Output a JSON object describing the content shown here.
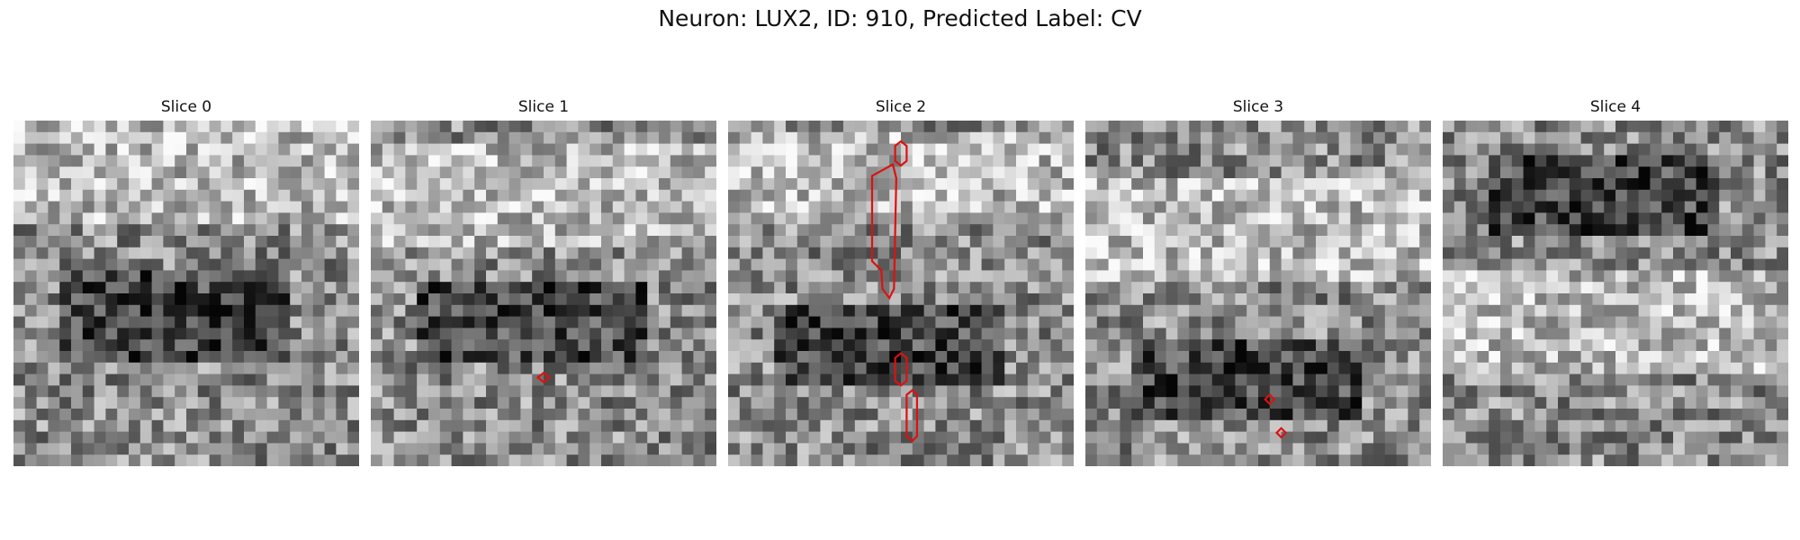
{
  "figure": {
    "title": "Neuron: LUX2, ID: 910, Predicted Label: CV"
  },
  "contour_color": "#dd1111",
  "slices": [
    {
      "title": "Slice 0",
      "seed": 11,
      "bright_band": [
        0.12,
        0.25
      ],
      "dark_band": [
        0.55,
        0.25
      ],
      "contours": []
    },
    {
      "title": "Slice 1",
      "seed": 23,
      "bright_band": [
        0.2,
        0.7
      ],
      "dark_band": [
        0.58,
        0.2
      ],
      "contours": [
        "small-diamond"
      ]
    },
    {
      "title": "Slice 2",
      "seed": 37,
      "bright_band": [
        0.15,
        0.75
      ],
      "dark_band": [
        0.62,
        0.18
      ],
      "contours": [
        "tall-hexagon",
        "small-hexagon",
        "mid-hexagon"
      ]
    },
    {
      "title": "Slice 3",
      "seed": 51,
      "bright_band": [
        0.3,
        0.7
      ],
      "dark_band": [
        0.72,
        0.22
      ],
      "contours": [
        "small-diamond",
        "small-diamond"
      ]
    },
    {
      "title": "Slice 4",
      "seed": 67,
      "bright_band": [
        0.55,
        0.8
      ],
      "dark_band": [
        0.2,
        0.3
      ],
      "contours": []
    }
  ]
}
